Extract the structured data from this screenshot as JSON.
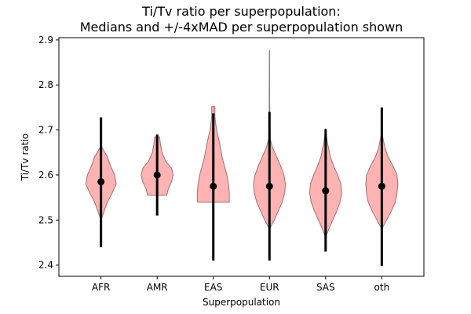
{
  "chart_data": {
    "type": "violin",
    "title_line1": "Ti/Tv ratio per superpopulation:",
    "title_line2": "Medians and +/-4xMAD per superpopulation shown",
    "xlabel": "Superpopulation",
    "ylabel": "Ti/Tv ratio",
    "ylim": [
      2.375,
      2.905
    ],
    "yticks": [
      2.4,
      2.5,
      2.6,
      2.7,
      2.8,
      2.9
    ],
    "ytick_labels": [
      "2.4",
      "2.5",
      "2.6",
      "2.7",
      "2.8",
      "2.9"
    ],
    "categories": [
      "AFR",
      "AMR",
      "EAS",
      "EUR",
      "SAS",
      "oth"
    ],
    "colors": {
      "violin_fill": "#ff9999",
      "violin_edge": "#a07070",
      "marker": "#000000",
      "extent_line": "#888888"
    },
    "groups": [
      {
        "name": "AFR",
        "median": 2.585,
        "mad_low": 2.44,
        "mad_high": 2.728,
        "min": 2.5,
        "max": 2.665,
        "profile": [
          [
            2.5,
            0.0
          ],
          [
            2.52,
            0.2
          ],
          [
            2.54,
            0.4
          ],
          [
            2.56,
            0.7
          ],
          [
            2.58,
            0.95
          ],
          [
            2.6,
            0.85
          ],
          [
            2.62,
            0.6
          ],
          [
            2.64,
            0.4
          ],
          [
            2.665,
            0.0
          ]
        ]
      },
      {
        "name": "AMR",
        "median": 2.6,
        "mad_low": 2.51,
        "mad_high": 2.69,
        "min": 2.555,
        "max": 2.685,
        "profile": [
          [
            2.555,
            0.6
          ],
          [
            2.57,
            0.7
          ],
          [
            2.585,
            0.9
          ],
          [
            2.6,
            1.0
          ],
          [
            2.615,
            0.9
          ],
          [
            2.63,
            0.55
          ],
          [
            2.65,
            0.3
          ],
          [
            2.67,
            0.2
          ],
          [
            2.685,
            0.15
          ]
        ]
      },
      {
        "name": "EAS",
        "median": 2.575,
        "mad_low": 2.41,
        "mad_high": 2.737,
        "min": 2.54,
        "max": 2.752,
        "profile": [
          [
            2.54,
            1.0
          ],
          [
            2.56,
            1.0
          ],
          [
            2.58,
            0.95
          ],
          [
            2.6,
            0.85
          ],
          [
            2.62,
            0.7
          ],
          [
            2.64,
            0.55
          ],
          [
            2.67,
            0.4
          ],
          [
            2.7,
            0.2
          ],
          [
            2.73,
            0.1
          ],
          [
            2.752,
            0.1
          ]
        ]
      },
      {
        "name": "EUR",
        "median": 2.575,
        "mad_low": 2.41,
        "mad_high": 2.74,
        "min": 2.48,
        "max": 2.877,
        "profile": [
          [
            2.48,
            0.0
          ],
          [
            2.5,
            0.3
          ],
          [
            2.52,
            0.55
          ],
          [
            2.54,
            0.8
          ],
          [
            2.56,
            0.95
          ],
          [
            2.58,
            1.0
          ],
          [
            2.6,
            0.9
          ],
          [
            2.62,
            0.7
          ],
          [
            2.64,
            0.45
          ],
          [
            2.66,
            0.2
          ],
          [
            2.68,
            0.05
          ],
          [
            2.72,
            0.02
          ],
          [
            2.877,
            0.0
          ]
        ]
      },
      {
        "name": "SAS",
        "median": 2.565,
        "mad_low": 2.43,
        "mad_high": 2.702,
        "min": 2.462,
        "max": 2.703,
        "profile": [
          [
            2.462,
            0.0
          ],
          [
            2.48,
            0.2
          ],
          [
            2.5,
            0.45
          ],
          [
            2.52,
            0.7
          ],
          [
            2.54,
            0.9
          ],
          [
            2.56,
            1.0
          ],
          [
            2.58,
            0.95
          ],
          [
            2.6,
            0.75
          ],
          [
            2.62,
            0.5
          ],
          [
            2.64,
            0.3
          ],
          [
            2.67,
            0.12
          ],
          [
            2.703,
            0.0
          ]
        ]
      },
      {
        "name": "oth",
        "median": 2.575,
        "mad_low": 2.398,
        "mad_high": 2.75,
        "min": 2.48,
        "max": 2.695,
        "profile": [
          [
            2.48,
            0.0
          ],
          [
            2.5,
            0.3
          ],
          [
            2.52,
            0.6
          ],
          [
            2.54,
            0.85
          ],
          [
            2.56,
            0.95
          ],
          [
            2.58,
            1.0
          ],
          [
            2.6,
            0.95
          ],
          [
            2.62,
            0.7
          ],
          [
            2.64,
            0.4
          ],
          [
            2.66,
            0.2
          ],
          [
            2.695,
            0.0
          ]
        ]
      }
    ]
  }
}
